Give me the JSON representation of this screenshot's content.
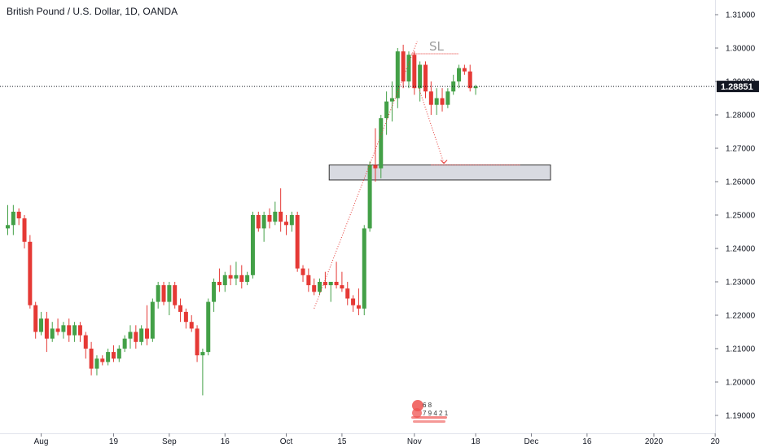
{
  "header": {
    "title": "British Pound / U.S. Dollar, 1D, OANDA"
  },
  "price_axis": {
    "ticks": [
      "1.31000",
      "1.30000",
      "1.29000",
      "1.28000",
      "1.27000",
      "1.26000",
      "1.25000",
      "1.24000",
      "1.23000",
      "1.22000",
      "1.21000",
      "1.20000",
      "1.19000"
    ],
    "current_price": "1.28851"
  },
  "time_axis": {
    "ticks": [
      "Aug",
      "19",
      "Sep",
      "16",
      "Oct",
      "15",
      "Nov",
      "18",
      "Dec",
      "16",
      "2020",
      "20"
    ]
  },
  "annotations": {
    "stop_loss_label": "SL"
  },
  "colors": {
    "up": "#43a047",
    "down": "#e53935",
    "price_line": "#131722",
    "drawing": "#e53935",
    "zone_fill": "#d1d4dc"
  },
  "chart_data": {
    "type": "candlestick",
    "title": "British Pound / U.S. Dollar, 1D, OANDA",
    "symbol": "GBPUSD",
    "timeframe": "1D",
    "ylim": [
      1.185,
      1.315
    ],
    "current_price": 1.28851,
    "candles": [
      [
        1.246,
        1.253,
        1.244,
        1.247
      ],
      [
        1.247,
        1.253,
        1.244,
        1.251
      ],
      [
        1.251,
        1.252,
        1.247,
        1.249
      ],
      [
        1.249,
        1.25,
        1.24,
        1.242
      ],
      [
        1.242,
        1.244,
        1.222,
        1.223
      ],
      [
        1.223,
        1.224,
        1.213,
        1.215
      ],
      [
        1.215,
        1.221,
        1.214,
        1.219
      ],
      [
        1.219,
        1.221,
        1.209,
        1.213
      ],
      [
        1.213,
        1.218,
        1.212,
        1.216
      ],
      [
        1.216,
        1.219,
        1.214,
        1.215
      ],
      [
        1.215,
        1.218,
        1.213,
        1.217
      ],
      [
        1.217,
        1.219,
        1.212,
        1.214
      ],
      [
        1.214,
        1.218,
        1.212,
        1.217
      ],
      [
        1.217,
        1.218,
        1.212,
        1.214
      ],
      [
        1.214,
        1.215,
        1.207,
        1.21
      ],
      [
        1.21,
        1.212,
        1.202,
        1.204
      ],
      [
        1.204,
        1.208,
        1.202,
        1.207
      ],
      [
        1.207,
        1.208,
        1.205,
        1.206
      ],
      [
        1.206,
        1.21,
        1.205,
        1.209
      ],
      [
        1.209,
        1.211,
        1.206,
        1.207
      ],
      [
        1.207,
        1.211,
        1.206,
        1.21
      ],
      [
        1.21,
        1.214,
        1.209,
        1.213
      ],
      [
        1.213,
        1.217,
        1.21,
        1.215
      ],
      [
        1.215,
        1.217,
        1.21,
        1.212
      ],
      [
        1.212,
        1.217,
        1.211,
        1.216
      ],
      [
        1.216,
        1.223,
        1.211,
        1.213
      ],
      [
        1.213,
        1.225,
        1.212,
        1.224
      ],
      [
        1.224,
        1.23,
        1.222,
        1.229
      ],
      [
        1.229,
        1.23,
        1.223,
        1.224
      ],
      [
        1.224,
        1.23,
        1.22,
        1.229
      ],
      [
        1.229,
        1.23,
        1.222,
        1.223
      ],
      [
        1.223,
        1.225,
        1.218,
        1.221
      ],
      [
        1.221,
        1.222,
        1.216,
        1.218
      ],
      [
        1.218,
        1.22,
        1.215,
        1.216
      ],
      [
        1.216,
        1.217,
        1.206,
        1.208
      ],
      [
        1.208,
        1.21,
        1.196,
        1.209
      ],
      [
        1.209,
        1.225,
        1.208,
        1.224
      ],
      [
        1.224,
        1.231,
        1.221,
        1.23
      ],
      [
        1.23,
        1.234,
        1.227,
        1.229
      ],
      [
        1.229,
        1.233,
        1.227,
        1.232
      ],
      [
        1.232,
        1.235,
        1.229,
        1.231
      ],
      [
        1.231,
        1.236,
        1.229,
        1.232
      ],
      [
        1.232,
        1.235,
        1.228,
        1.23
      ],
      [
        1.23,
        1.233,
        1.229,
        1.232
      ],
      [
        1.232,
        1.251,
        1.231,
        1.25
      ],
      [
        1.25,
        1.251,
        1.245,
        1.246
      ],
      [
        1.246,
        1.251,
        1.242,
        1.25
      ],
      [
        1.25,
        1.252,
        1.246,
        1.248
      ],
      [
        1.248,
        1.254,
        1.247,
        1.251
      ],
      [
        1.251,
        1.258,
        1.245,
        1.248
      ],
      [
        1.248,
        1.25,
        1.244,
        1.247
      ],
      [
        1.247,
        1.251,
        1.245,
        1.25
      ],
      [
        1.25,
        1.251,
        1.233,
        1.234
      ],
      [
        1.234,
        1.235,
        1.23,
        1.232
      ],
      [
        1.232,
        1.234,
        1.227,
        1.229
      ],
      [
        1.229,
        1.231,
        1.226,
        1.227
      ],
      [
        1.227,
        1.231,
        1.226,
        1.23
      ],
      [
        1.23,
        1.233,
        1.228,
        1.229
      ],
      [
        1.229,
        1.23,
        1.224,
        1.23
      ],
      [
        1.23,
        1.236,
        1.228,
        1.229
      ],
      [
        1.229,
        1.233,
        1.227,
        1.228
      ],
      [
        1.228,
        1.23,
        1.223,
        1.225
      ],
      [
        1.225,
        1.226,
        1.221,
        1.223
      ],
      [
        1.223,
        1.228,
        1.22,
        1.222
      ],
      [
        1.222,
        1.247,
        1.22,
        1.246
      ],
      [
        1.246,
        1.266,
        1.245,
        1.265
      ],
      [
        1.265,
        1.276,
        1.26,
        1.264
      ],
      [
        1.264,
        1.28,
        1.261,
        1.279
      ],
      [
        1.279,
        1.287,
        1.274,
        1.284
      ],
      [
        1.284,
        1.29,
        1.278,
        1.285
      ],
      [
        1.285,
        1.3,
        1.282,
        1.299
      ],
      [
        1.299,
        1.301,
        1.288,
        1.29
      ],
      [
        1.29,
        1.299,
        1.288,
        1.298
      ],
      [
        1.298,
        1.299,
        1.286,
        1.288
      ],
      [
        1.288,
        1.296,
        1.284,
        1.295
      ],
      [
        1.295,
        1.296,
        1.285,
        1.287
      ],
      [
        1.287,
        1.29,
        1.28,
        1.283
      ],
      [
        1.283,
        1.288,
        1.28,
        1.285
      ],
      [
        1.285,
        1.288,
        1.281,
        1.283
      ],
      [
        1.283,
        1.288,
        1.282,
        1.287
      ],
      [
        1.287,
        1.292,
        1.286,
        1.29
      ],
      [
        1.29,
        1.295,
        1.288,
        1.294
      ],
      [
        1.294,
        1.295,
        1.292,
        1.293
      ],
      [
        1.293,
        1.295,
        1.287,
        1.288
      ],
      [
        1.288,
        1.289,
        1.286,
        1.2885
      ]
    ],
    "drawings": {
      "stop_loss_level": 1.2983,
      "target_zone": [
        1.2605,
        1.265
      ],
      "trendline_from_price": 1.222,
      "trendline_to_price": 1.302,
      "projection_target_price": 1.265
    }
  }
}
